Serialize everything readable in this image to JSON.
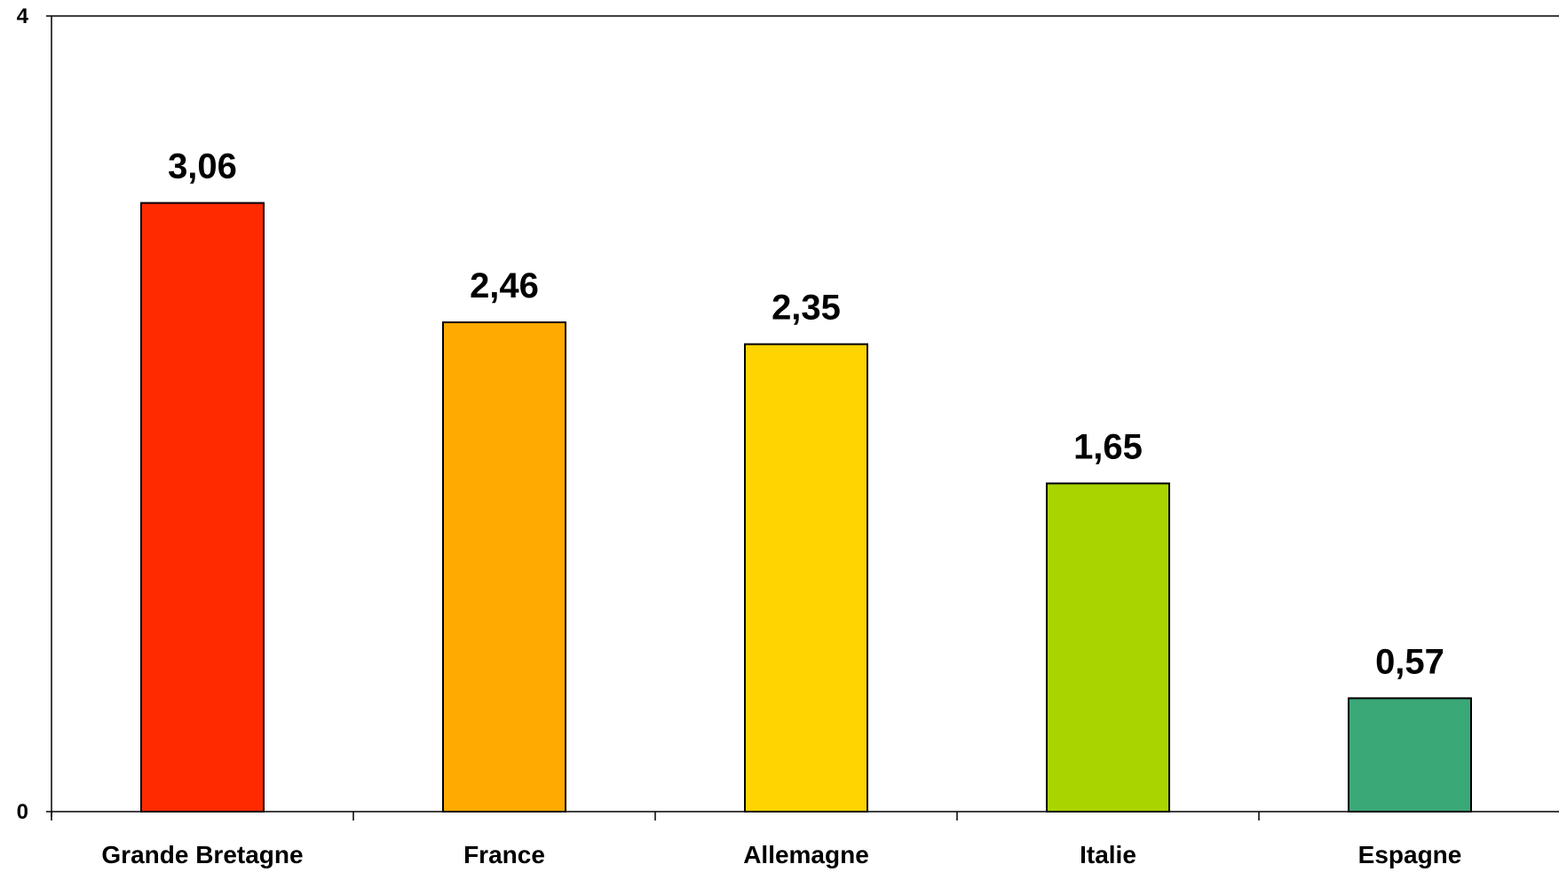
{
  "chart_data": {
    "type": "bar",
    "title": "",
    "xlabel": "",
    "ylabel": "",
    "ylim": [
      0,
      4
    ],
    "y_ticks": [
      "0",
      "4"
    ],
    "categories": [
      "Grande Bretagne",
      "France",
      "Allemagne",
      "Italie",
      "Espagne"
    ],
    "values": [
      3.06,
      2.46,
      2.35,
      1.65,
      0.57
    ],
    "value_labels": [
      "3,06",
      "2,46",
      "2,35",
      "1,65",
      "0,57"
    ],
    "colors": [
      "#ff2a00",
      "#ffaa00",
      "#ffd400",
      "#aad400",
      "#3ba878"
    ],
    "grid": false,
    "legend": "none"
  }
}
